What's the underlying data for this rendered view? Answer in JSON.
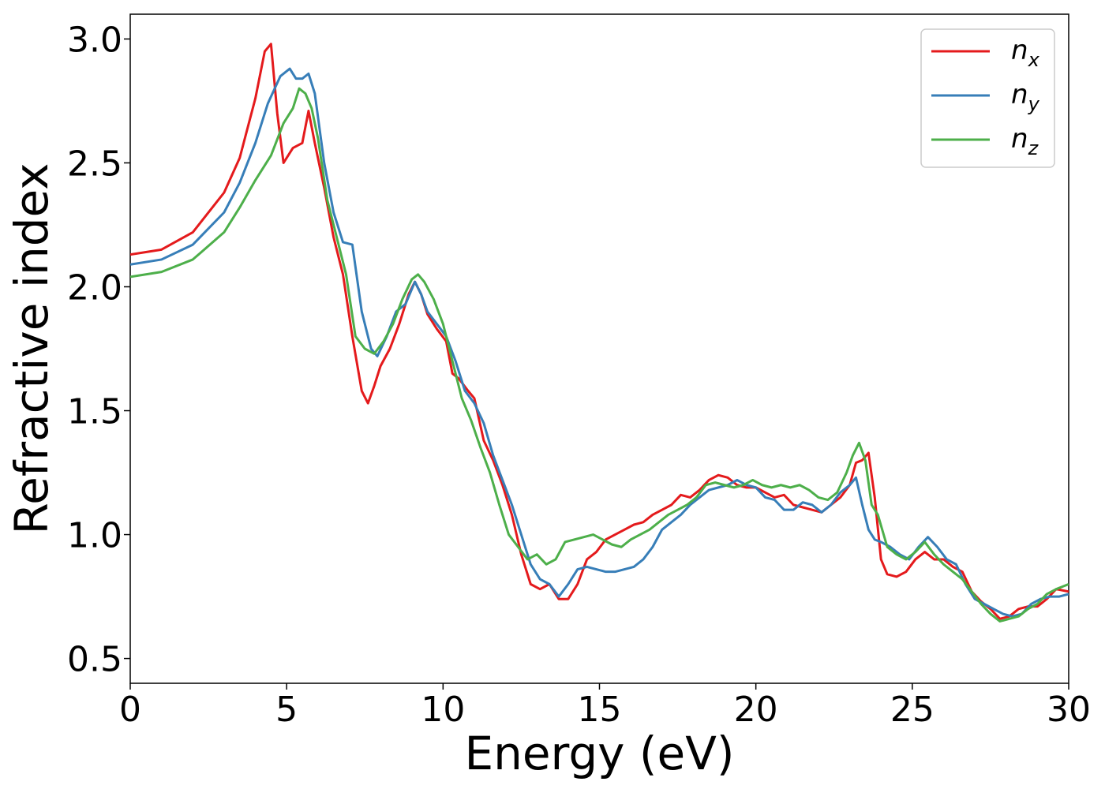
{
  "chart_data": {
    "type": "line",
    "xlabel": "Energy (eV)",
    "ylabel": "Refractive index",
    "xlim": [
      0,
      30
    ],
    "ylim": [
      0.4,
      3.1
    ],
    "xticks": [
      0,
      5,
      10,
      15,
      20,
      25,
      30
    ],
    "yticks": [
      0.5,
      1.0,
      1.5,
      2.0,
      2.5,
      3.0
    ],
    "xtick_labels": [
      "0",
      "5",
      "10",
      "15",
      "20",
      "25",
      "30"
    ],
    "ytick_labels": [
      "0.5",
      "1.0",
      "1.5",
      "2.0",
      "2.5",
      "3.0"
    ],
    "grid": false,
    "legend_position": "top-right",
    "series": [
      {
        "name": "n_x",
        "legend_base": "n",
        "legend_sub": "x",
        "color": "#e41a1c",
        "x": [
          0,
          1,
          2,
          3,
          3.5,
          4,
          4.3,
          4.5,
          4.7,
          4.9,
          5.2,
          5.5,
          5.7,
          5.9,
          6.2,
          6.5,
          6.8,
          7.1,
          7.4,
          7.6,
          7.8,
          8,
          8.3,
          8.6,
          8.9,
          9.1,
          9.3,
          9.5,
          9.8,
          10.1,
          10.3,
          10.5,
          10.8,
          11,
          11.3,
          11.6,
          11.9,
          12.2,
          12.5,
          12.8,
          13.1,
          13.4,
          13.7,
          14,
          14.3,
          14.6,
          14.9,
          15.2,
          15.5,
          15.8,
          16.1,
          16.4,
          16.7,
          17,
          17.3,
          17.6,
          17.9,
          18.2,
          18.5,
          18.8,
          19.1,
          19.4,
          19.7,
          20,
          20.3,
          20.6,
          20.9,
          21.2,
          21.5,
          21.8,
          22.1,
          22.4,
          22.7,
          23,
          23.2,
          23.4,
          23.6,
          23.8,
          24,
          24.2,
          24.5,
          24.8,
          25.1,
          25.4,
          25.7,
          26,
          26.3,
          26.6,
          26.9,
          27.2,
          27.5,
          27.8,
          28.1,
          28.4,
          28.7,
          29,
          29.3,
          29.6,
          30
        ],
        "y": [
          2.13,
          2.15,
          2.22,
          2.38,
          2.52,
          2.76,
          2.95,
          2.98,
          2.7,
          2.5,
          2.56,
          2.58,
          2.71,
          2.58,
          2.4,
          2.2,
          2.05,
          1.8,
          1.58,
          1.53,
          1.6,
          1.68,
          1.75,
          1.85,
          1.97,
          2.02,
          1.97,
          1.89,
          1.83,
          1.78,
          1.65,
          1.63,
          1.58,
          1.55,
          1.38,
          1.3,
          1.2,
          1.08,
          0.92,
          0.8,
          0.78,
          0.8,
          0.74,
          0.74,
          0.8,
          0.9,
          0.93,
          0.98,
          1.0,
          1.02,
          1.04,
          1.05,
          1.08,
          1.1,
          1.12,
          1.16,
          1.15,
          1.18,
          1.22,
          1.24,
          1.23,
          1.2,
          1.19,
          1.19,
          1.17,
          1.15,
          1.16,
          1.12,
          1.11,
          1.1,
          1.09,
          1.12,
          1.15,
          1.2,
          1.29,
          1.3,
          1.33,
          1.15,
          0.9,
          0.84,
          0.83,
          0.85,
          0.9,
          0.93,
          0.9,
          0.9,
          0.87,
          0.85,
          0.77,
          0.73,
          0.7,
          0.66,
          0.67,
          0.7,
          0.71,
          0.71,
          0.74,
          0.78,
          0.77
        ]
      },
      {
        "name": "n_y",
        "legend_base": "n",
        "legend_sub": "y",
        "color": "#377eb8",
        "x": [
          0,
          1,
          2,
          3,
          3.5,
          4,
          4.4,
          4.8,
          5.1,
          5.3,
          5.5,
          5.7,
          5.9,
          6.2,
          6.5,
          6.8,
          7.1,
          7.4,
          7.7,
          7.9,
          8.2,
          8.5,
          8.8,
          9.1,
          9.3,
          9.5,
          9.8,
          10.1,
          10.4,
          10.7,
          11,
          11.3,
          11.6,
          11.9,
          12.2,
          12.5,
          12.8,
          13.1,
          13.4,
          13.7,
          14,
          14.3,
          14.6,
          14.9,
          15.2,
          15.5,
          15.8,
          16.1,
          16.4,
          16.7,
          17,
          17.3,
          17.6,
          17.9,
          18.2,
          18.5,
          18.8,
          19.1,
          19.4,
          19.7,
          20,
          20.3,
          20.6,
          20.9,
          21.2,
          21.5,
          21.8,
          22.1,
          22.4,
          22.7,
          23,
          23.2,
          23.4,
          23.6,
          23.8,
          24,
          24.3,
          24.6,
          24.9,
          25.2,
          25.5,
          25.8,
          26.1,
          26.4,
          26.7,
          27,
          27.3,
          27.6,
          27.9,
          28.2,
          28.5,
          28.8,
          29.1,
          29.4,
          29.7,
          30
        ],
        "y": [
          2.09,
          2.11,
          2.17,
          2.3,
          2.42,
          2.58,
          2.74,
          2.85,
          2.88,
          2.84,
          2.84,
          2.86,
          2.78,
          2.5,
          2.3,
          2.18,
          2.17,
          1.9,
          1.75,
          1.72,
          1.8,
          1.9,
          1.93,
          2.02,
          1.97,
          1.9,
          1.85,
          1.8,
          1.7,
          1.58,
          1.53,
          1.45,
          1.32,
          1.22,
          1.12,
          1.0,
          0.88,
          0.82,
          0.8,
          0.75,
          0.8,
          0.86,
          0.87,
          0.86,
          0.85,
          0.85,
          0.86,
          0.87,
          0.9,
          0.95,
          1.02,
          1.05,
          1.08,
          1.12,
          1.15,
          1.18,
          1.19,
          1.2,
          1.22,
          1.2,
          1.19,
          1.15,
          1.14,
          1.1,
          1.1,
          1.13,
          1.12,
          1.09,
          1.12,
          1.17,
          1.2,
          1.23,
          1.12,
          1.02,
          0.98,
          0.97,
          0.95,
          0.92,
          0.9,
          0.95,
          0.99,
          0.95,
          0.9,
          0.88,
          0.8,
          0.74,
          0.72,
          0.7,
          0.68,
          0.67,
          0.68,
          0.72,
          0.74,
          0.75,
          0.75,
          0.76
        ]
      },
      {
        "name": "n_z",
        "legend_base": "n",
        "legend_sub": "z",
        "color": "#4daf4a",
        "x": [
          0,
          1,
          2,
          3,
          3.5,
          4,
          4.5,
          4.9,
          5.2,
          5.4,
          5.6,
          5.8,
          6,
          6.3,
          6.6,
          6.9,
          7.2,
          7.5,
          7.8,
          8.1,
          8.4,
          8.7,
          9,
          9.2,
          9.4,
          9.7,
          10,
          10.3,
          10.6,
          10.9,
          11.2,
          11.5,
          11.8,
          12.1,
          12.4,
          12.7,
          13,
          13.3,
          13.6,
          13.9,
          14.2,
          14.5,
          14.8,
          15.1,
          15.4,
          15.7,
          16,
          16.3,
          16.6,
          16.9,
          17.2,
          17.5,
          17.8,
          18.1,
          18.4,
          18.7,
          19,
          19.3,
          19.6,
          19.9,
          20.2,
          20.5,
          20.8,
          21.1,
          21.4,
          21.7,
          22,
          22.3,
          22.6,
          22.9,
          23.1,
          23.3,
          23.5,
          23.7,
          23.9,
          24.2,
          24.5,
          24.8,
          25.1,
          25.4,
          25.7,
          26,
          26.3,
          26.6,
          26.9,
          27.2,
          27.5,
          27.8,
          28.1,
          28.4,
          28.7,
          29,
          29.3,
          29.6,
          30
        ],
        "y": [
          2.04,
          2.06,
          2.11,
          2.22,
          2.32,
          2.43,
          2.53,
          2.66,
          2.72,
          2.8,
          2.78,
          2.72,
          2.6,
          2.35,
          2.2,
          2.05,
          1.8,
          1.75,
          1.73,
          1.78,
          1.85,
          1.95,
          2.03,
          2.05,
          2.02,
          1.95,
          1.85,
          1.7,
          1.55,
          1.46,
          1.35,
          1.25,
          1.12,
          1.0,
          0.95,
          0.9,
          0.92,
          0.88,
          0.9,
          0.97,
          0.98,
          0.99,
          1.0,
          0.98,
          0.96,
          0.95,
          0.98,
          1.0,
          1.02,
          1.05,
          1.08,
          1.1,
          1.12,
          1.15,
          1.2,
          1.21,
          1.2,
          1.19,
          1.2,
          1.22,
          1.2,
          1.19,
          1.2,
          1.19,
          1.2,
          1.18,
          1.15,
          1.14,
          1.17,
          1.25,
          1.32,
          1.37,
          1.3,
          1.12,
          1.08,
          0.95,
          0.92,
          0.9,
          0.93,
          0.97,
          0.92,
          0.88,
          0.85,
          0.82,
          0.77,
          0.72,
          0.68,
          0.65,
          0.66,
          0.67,
          0.7,
          0.72,
          0.76,
          0.78,
          0.8
        ]
      }
    ]
  }
}
